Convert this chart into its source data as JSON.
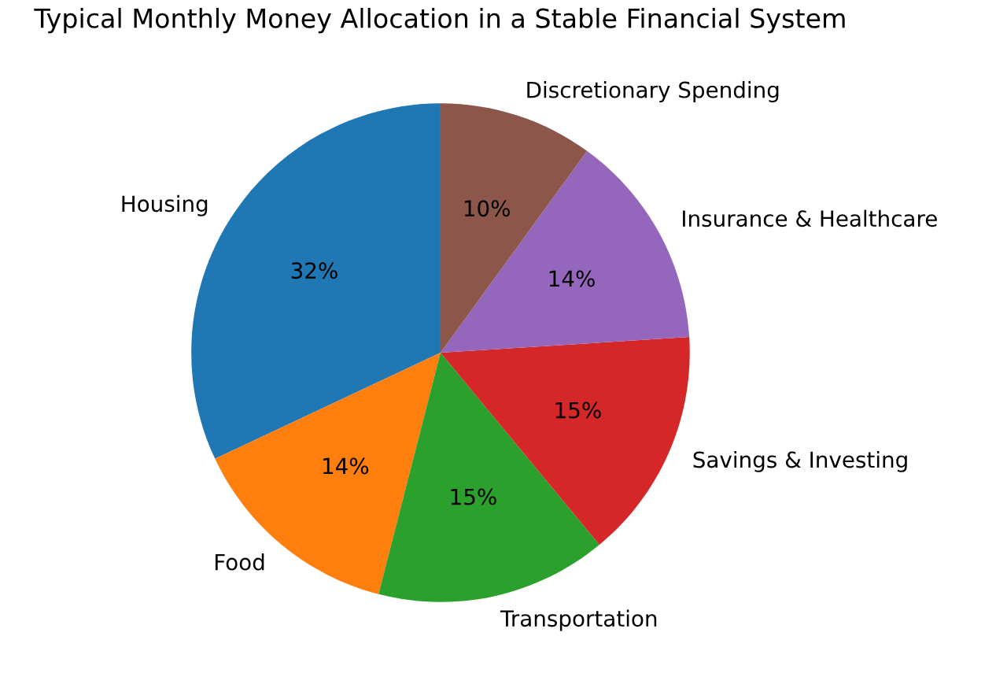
{
  "chart_data": {
    "type": "pie",
    "title": "Typical Monthly Money Allocation in a Stable Financial System",
    "categories": [
      "Housing",
      "Food",
      "Transportation",
      "Savings & Investing",
      "Insurance & Healthcare",
      "Discretionary Spending"
    ],
    "values": [
      32,
      14,
      15,
      15,
      14,
      10
    ],
    "colors": [
      "#1f77b4",
      "#ff7f0e",
      "#2ca02c",
      "#d62728",
      "#9467bd",
      "#8c564b"
    ],
    "value_labels": [
      "32%",
      "14%",
      "15%",
      "15%",
      "14%",
      "10%"
    ]
  }
}
